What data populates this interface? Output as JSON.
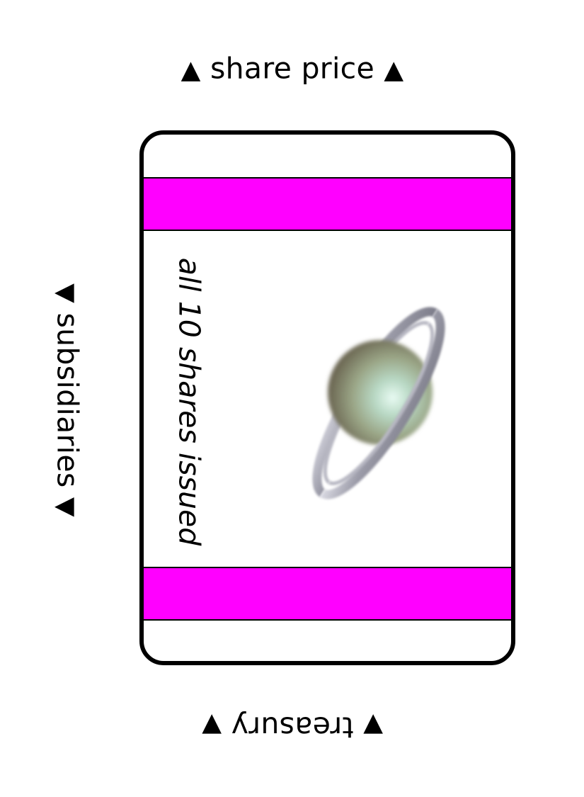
{
  "colors": {
    "stripe": "#ff00ff",
    "border": "#000000",
    "background": "#ffffff"
  },
  "labels": {
    "top": {
      "text": "share price",
      "left_marker": "▲",
      "right_marker": "▲"
    },
    "left": {
      "text": "subsidiaries",
      "left_marker": "▼",
      "right_marker": "▼"
    },
    "bottom": {
      "text": "treasury",
      "left_marker": "▼",
      "right_marker": "▼"
    }
  },
  "card": {
    "shares_text": "all 10 shares issued",
    "image_icon": "ringed-planet-icon"
  }
}
